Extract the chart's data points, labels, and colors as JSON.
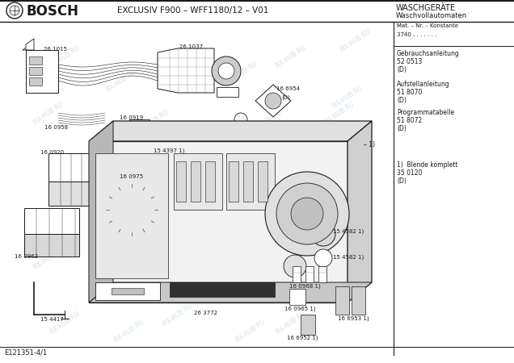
{
  "title_left": "BOSCH",
  "header_center": "EXCLUSIV F900 – WFF1180/12 – V01",
  "header_right_line1": "WASCHGERÄTE",
  "header_right_line2": "Waschvollautomaten",
  "mat_nr_label": "Mat. – Nr. – Konstante",
  "mat_nr_value": "3740 . . . . . . .",
  "right_panel_items": [
    {
      "title": "Gebrauchsanleitung",
      "num": "52 0513",
      "suffix": "(D)"
    },
    {
      "title": "Aufstellanleitung",
      "num": "51 8070",
      "suffix": "(D)"
    },
    {
      "title": "Programmatabelle",
      "num": "51 8072",
      "suffix": "(D)"
    },
    {
      "title": "1)  Blende komplett",
      "num": "35 0120",
      "suffix": "(D)"
    }
  ],
  "footer_left": "E121351-4/1",
  "bg_color": "#ffffff",
  "watermark_text": "FIX-HUB.RU",
  "watermark_color": "#b8ccd8"
}
